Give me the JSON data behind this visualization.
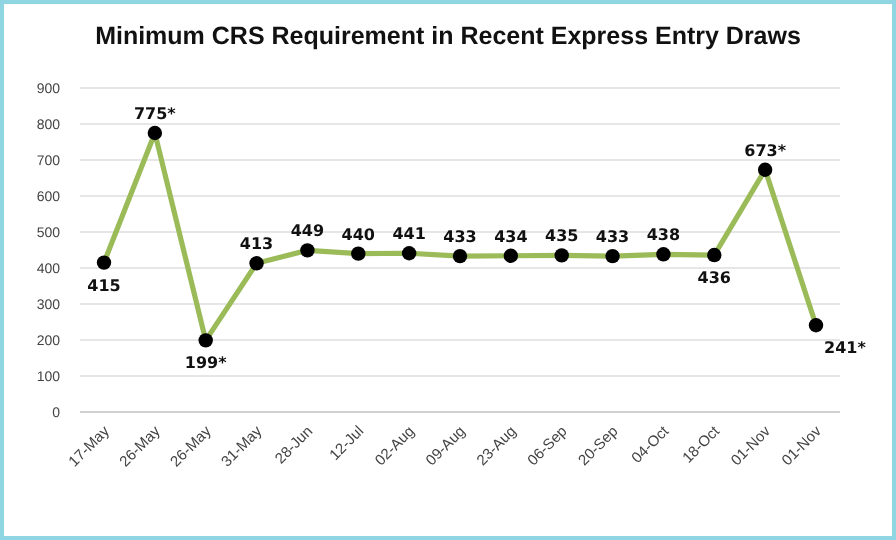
{
  "chart_data": {
    "type": "line",
    "title": "Minimum CRS Requirement in Recent Express Entry Draws",
    "categories": [
      "17-May",
      "26-May",
      "26-May",
      "31-May",
      "28-Jun",
      "12-Jul",
      "02-Aug",
      "09-Aug",
      "23-Aug",
      "06-Sep",
      "20-Sep",
      "04-Oct",
      "18-Oct",
      "01-Nov",
      "01-Nov"
    ],
    "series": [
      {
        "color": "#9bbb59",
        "values": [
          415,
          775,
          199,
          413,
          449,
          440,
          441,
          433,
          434,
          435,
          433,
          438,
          436,
          673,
          241
        ],
        "value_labels": [
          "415",
          "775*",
          "199*",
          "413",
          "449",
          "440",
          "441",
          "433",
          "434",
          "435",
          "433",
          "438",
          "436",
          "673*",
          "241*"
        ]
      }
    ],
    "ylim": [
      0,
      900
    ],
    "yticks": [
      0,
      100,
      200,
      300,
      400,
      500,
      600,
      700,
      800,
      900
    ],
    "grid": "y",
    "marker": "circle",
    "line_style": "solid"
  }
}
